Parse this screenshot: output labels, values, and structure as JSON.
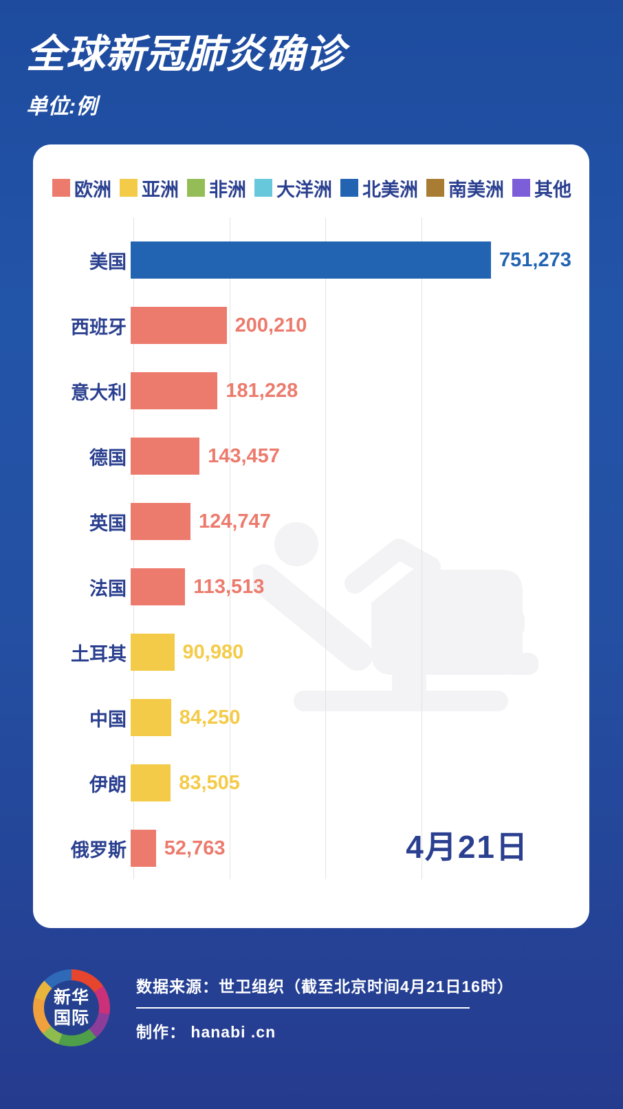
{
  "header": {
    "title": "全球新冠肺炎确诊",
    "subtitle": "单位:例"
  },
  "legend": [
    {
      "label": "欧洲",
      "color": "#ec7b6d"
    },
    {
      "label": "亚洲",
      "color": "#f4cb48"
    },
    {
      "label": "非洲",
      "color": "#94bd58"
    },
    {
      "label": "大洋洲",
      "color": "#67c8dc"
    },
    {
      "label": "北美洲",
      "color": "#2263b2"
    },
    {
      "label": "南美洲",
      "color": "#a87d33"
    },
    {
      "label": "其他",
      "color": "#7c5ed8"
    }
  ],
  "chart_data": {
    "type": "bar",
    "orientation": "horizontal",
    "title": "全球新冠肺炎确诊",
    "unit_label": "单位:例",
    "date_label": "4月21日",
    "xlim": [
      0,
      751273
    ],
    "gridline_interval": 200000,
    "grid": true,
    "legend_position": "top",
    "categories": [
      "美国",
      "西班牙",
      "意大利",
      "德国",
      "英国",
      "法国",
      "土耳其",
      "中国",
      "伊朗",
      "俄罗斯"
    ],
    "values": [
      751273,
      200210,
      181228,
      143457,
      124747,
      113513,
      90980,
      84250,
      83505,
      52763
    ],
    "value_labels": [
      "751,273",
      "200,210",
      "181,228",
      "143,457",
      "124,747",
      "113,513",
      "90,980",
      "84,250",
      "83,505",
      "52,763"
    ],
    "continents": [
      "北美洲",
      "欧洲",
      "欧洲",
      "欧洲",
      "欧洲",
      "欧洲",
      "亚洲",
      "亚洲",
      "亚洲",
      "欧洲"
    ],
    "bar_colors": [
      "#2263b2",
      "#ec7b6d",
      "#ec7b6d",
      "#ec7b6d",
      "#ec7b6d",
      "#ec7b6d",
      "#f4cb48",
      "#f4cb48",
      "#f4cb48",
      "#ec7b6d"
    ]
  },
  "watermark": {
    "name": "patient-on-hospital-bed",
    "color": "#f3f3f6"
  },
  "footer": {
    "logo_line1": "新华",
    "logo_line2": "国际",
    "source": "数据来源：世卫组织（截至北京时间4月21日16时）",
    "credit": "制作： hanabi .cn"
  },
  "colors": {
    "background_top": "#1e4b9e",
    "background_bottom": "#253b8e",
    "card": "#ffffff",
    "label_navy": "#2a3f8f",
    "gridline": "#e2e2e6",
    "europe": "#ec7b6d",
    "asia": "#f4cb48",
    "africa": "#94bd58",
    "oceania": "#67c8dc",
    "north_america": "#2263b2",
    "south_america": "#a87d33",
    "other": "#7c5ed8"
  }
}
